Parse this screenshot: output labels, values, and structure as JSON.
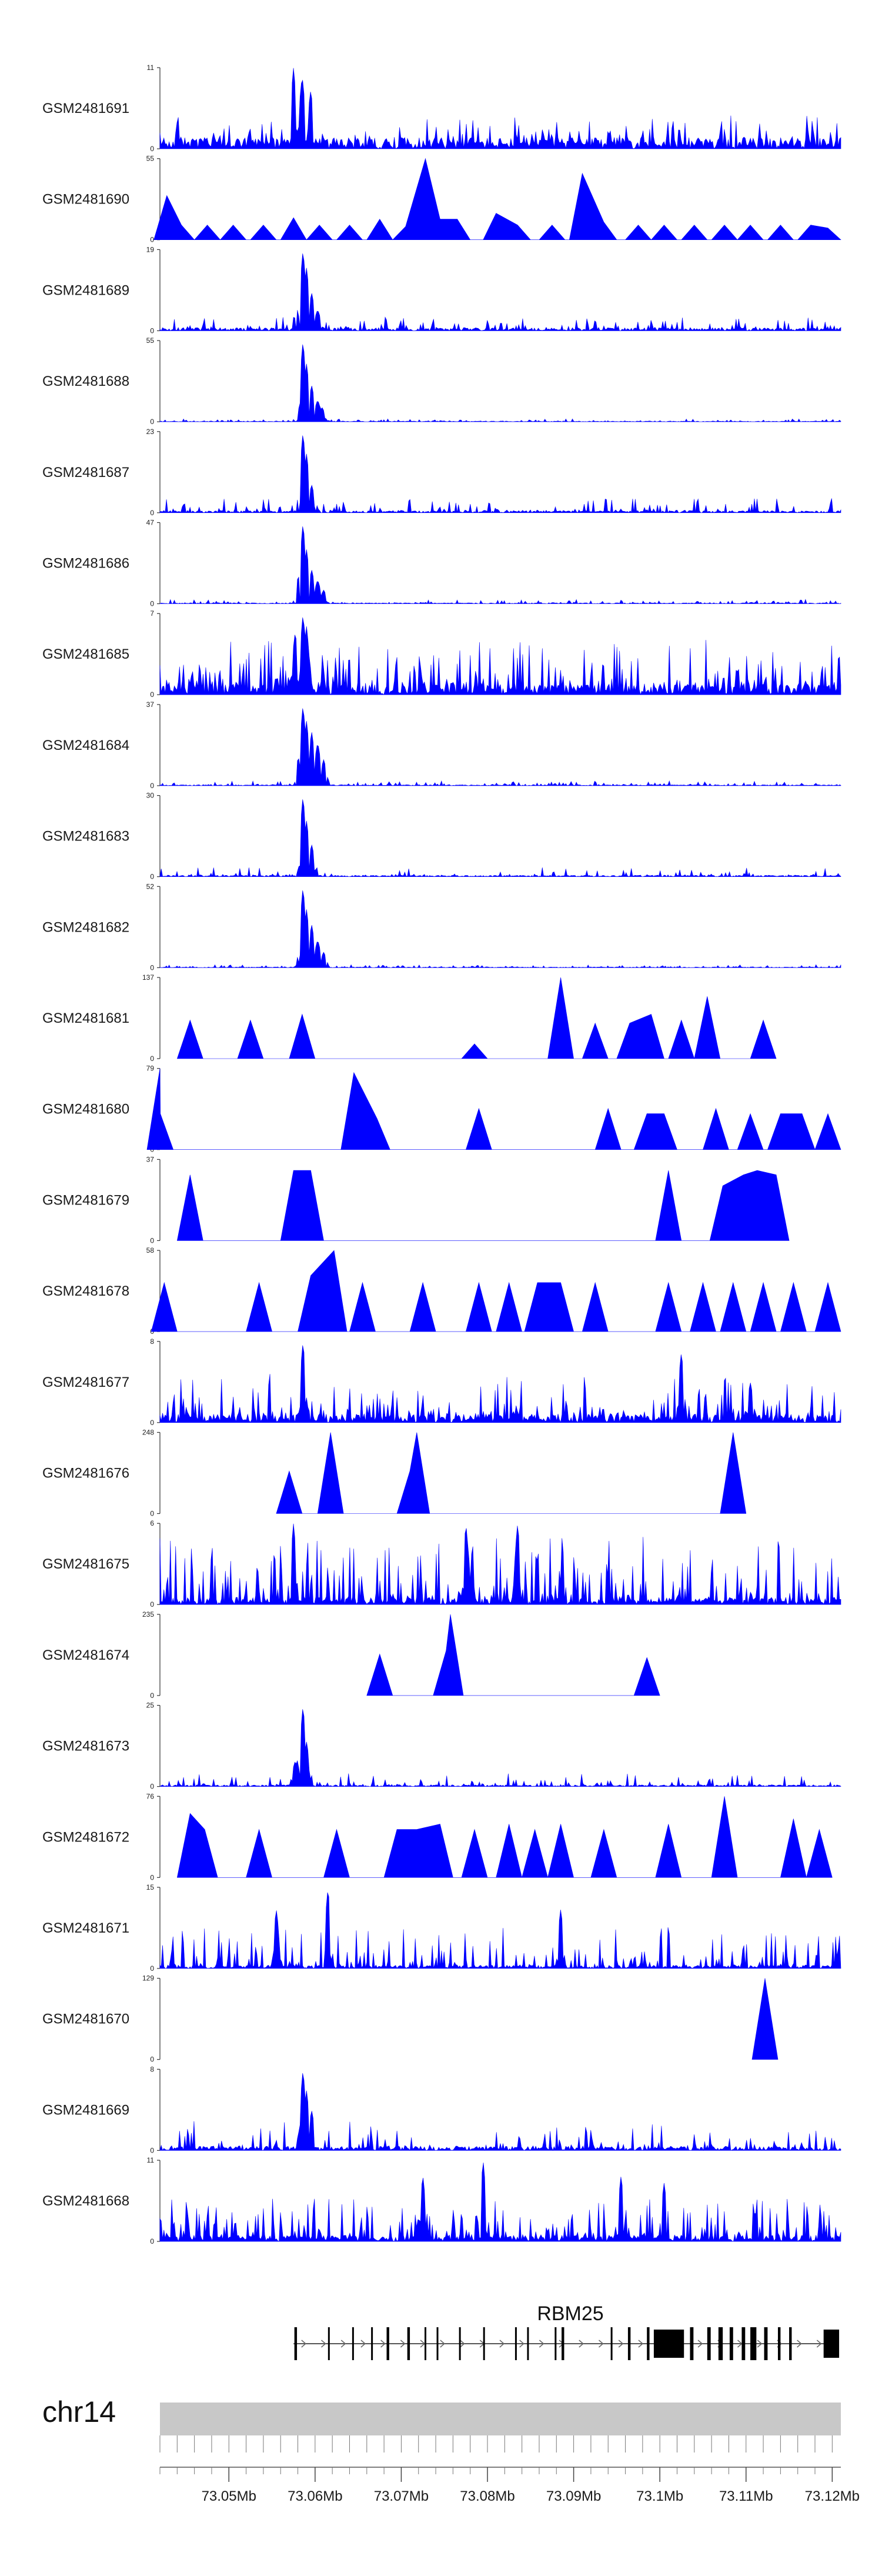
{
  "chart_data": {
    "type": "area",
    "title": "",
    "chromosome": "chr14",
    "gene": "RBM25",
    "x_unit": "Mb",
    "xlim": [
      73.042,
      73.121
    ],
    "x_ticks": [
      73.05,
      73.06,
      73.07,
      73.08,
      73.09,
      73.1,
      73.11,
      73.12
    ],
    "x_tick_labels": [
      "73.05Mb",
      "73.06Mb",
      "73.07Mb",
      "73.08Mb",
      "73.09Mb",
      "73.1Mb",
      "73.11Mb",
      "73.12Mb"
    ],
    "colors": {
      "signal": "#0000ff",
      "gene": "#000000",
      "ideogram": "#c8c8c8"
    },
    "series": [
      {
        "name": "GSM2481691",
        "ymax": 11,
        "ymax_label": "11",
        "ymin_label": "0",
        "style": "dense",
        "baseline": 1.5,
        "noise": 3.0,
        "sparse": 0.82,
        "spikes": [
          [
            73.0575,
            11.0
          ],
          [
            73.0585,
            10.0
          ],
          [
            73.0595,
            8.0
          ]
        ]
      },
      {
        "name": "GSM2481690",
        "ymax": 55,
        "ymax_label": "55",
        "ymin_label": "0",
        "style": "peaks",
        "peaks": [
          [
            73.0428,
            30
          ],
          [
            73.0445,
            10
          ],
          [
            73.0475,
            10
          ],
          [
            73.0505,
            10
          ],
          [
            73.054,
            10
          ],
          [
            73.0575,
            15
          ],
          [
            73.0605,
            10
          ],
          [
            73.064,
            10
          ],
          [
            73.0675,
            14
          ],
          [
            73.0705,
            9
          ],
          [
            73.0728,
            55
          ],
          [
            73.0745,
            14
          ],
          [
            73.0765,
            14
          ],
          [
            73.081,
            18
          ],
          [
            73.0835,
            10
          ],
          [
            73.0875,
            10
          ],
          [
            73.091,
            45
          ],
          [
            73.0935,
            12
          ],
          [
            73.0975,
            10
          ],
          [
            73.1005,
            10
          ],
          [
            73.104,
            10
          ],
          [
            73.1075,
            10
          ],
          [
            73.1105,
            10
          ],
          [
            73.114,
            10
          ],
          [
            73.1175,
            10
          ],
          [
            73.1195,
            8
          ]
        ]
      },
      {
        "name": "GSM2481689",
        "ymax": 19,
        "ymax_label": "19",
        "ymin_label": "0",
        "style": "dense",
        "baseline": 0.7,
        "noise": 2.5,
        "sparse": 0.8,
        "spikes": [
          [
            73.0586,
            19.0
          ],
          [
            73.059,
            15.0
          ],
          [
            73.0596,
            9.0
          ],
          [
            73.0603,
            5.0
          ]
        ]
      },
      {
        "name": "GSM2481688",
        "ymax": 55,
        "ymax_label": "55",
        "ymin_label": "0",
        "style": "dense",
        "baseline": 0.4,
        "noise": 1.5,
        "sparse": 0.75,
        "spikes": [
          [
            73.0586,
            55.0
          ],
          [
            73.059,
            40.0
          ],
          [
            73.0596,
            25.0
          ],
          [
            73.0603,
            15.0
          ],
          [
            73.0608,
            10.0
          ]
        ]
      },
      {
        "name": "GSM2481687",
        "ymax": 23,
        "ymax_label": "23",
        "ymin_label": "0",
        "style": "dense",
        "baseline": 0.6,
        "noise": 3.5,
        "sparse": 0.8,
        "spikes": [
          [
            73.0586,
            23.0
          ],
          [
            73.059,
            17.0
          ],
          [
            73.0596,
            8.0
          ]
        ]
      },
      {
        "name": "GSM2481686",
        "ymax": 47,
        "ymax_label": "47",
        "ymin_label": "0",
        "style": "dense",
        "baseline": 0.5,
        "noise": 2.0,
        "sparse": 0.75,
        "spikes": [
          [
            73.0586,
            47.0
          ],
          [
            73.059,
            32.0
          ],
          [
            73.0596,
            20.0
          ],
          [
            73.0603,
            14.0
          ],
          [
            73.061,
            8.0
          ]
        ]
      },
      {
        "name": "GSM2481685",
        "ymax": 7,
        "ymax_label": "7",
        "ymin_label": "0",
        "style": "dense",
        "baseline": 0.8,
        "noise": 4.0,
        "sparse": 0.55,
        "spikes": [
          [
            73.0586,
            7.0
          ],
          [
            73.059,
            6.0
          ],
          [
            73.0577,
            5.5
          ]
        ]
      },
      {
        "name": "GSM2481684",
        "ymax": 37,
        "ymax_label": "37",
        "ymin_label": "0",
        "style": "dense",
        "baseline": 0.4,
        "noise": 1.8,
        "sparse": 0.75,
        "spikes": [
          [
            73.0586,
            37.0
          ],
          [
            73.059,
            30.0
          ],
          [
            73.0596,
            25.0
          ],
          [
            73.0603,
            20.0
          ],
          [
            73.061,
            12.0
          ]
        ]
      },
      {
        "name": "GSM2481683",
        "ymax": 30,
        "ymax_label": "30",
        "ymin_label": "0",
        "style": "dense",
        "baseline": 0.5,
        "noise": 3.0,
        "sparse": 0.8,
        "spikes": [
          [
            73.0586,
            30.0
          ],
          [
            73.059,
            21.0
          ],
          [
            73.0596,
            12.0
          ]
        ]
      },
      {
        "name": "GSM2481682",
        "ymax": 52,
        "ymax_label": "52",
        "ymin_label": "0",
        "style": "dense",
        "baseline": 0.4,
        "noise": 1.5,
        "sparse": 0.75,
        "spikes": [
          [
            73.0586,
            52.0
          ],
          [
            73.059,
            38.0
          ],
          [
            73.0596,
            28.0
          ],
          [
            73.0603,
            18.0
          ],
          [
            73.061,
            10.0
          ]
        ]
      },
      {
        "name": "GSM2481681",
        "ymax": 137,
        "ymax_label": "137",
        "ymin_label": "0",
        "style": "peaks",
        "peaks": [
          [
            73.0455,
            65
          ],
          [
            73.0525,
            65
          ],
          [
            73.0585,
            75
          ],
          [
            73.0785,
            25
          ],
          [
            73.0885,
            137
          ],
          [
            73.0925,
            60
          ],
          [
            73.0965,
            60
          ],
          [
            73.099,
            75
          ],
          [
            73.1025,
            65
          ],
          [
            73.1055,
            105
          ],
          [
            73.112,
            65
          ]
        ]
      },
      {
        "name": "GSM2481680",
        "ymax": 79,
        "ymax_label": "79",
        "ymin_label": "0",
        "style": "peaks",
        "peaks": [
          [
            73.042,
            79
          ],
          [
            73.04205,
            35
          ],
          [
            73.0645,
            75
          ],
          [
            73.0672,
            30
          ],
          [
            73.079,
            40
          ],
          [
            73.094,
            40
          ],
          [
            73.0985,
            35
          ],
          [
            73.1005,
            35
          ],
          [
            73.1065,
            40
          ],
          [
            73.1105,
            35
          ],
          [
            73.114,
            35
          ],
          [
            73.1165,
            35
          ],
          [
            73.1195,
            35
          ]
        ]
      },
      {
        "name": "GSM2481679",
        "ymax": 37,
        "ymax_label": "37",
        "ymin_label": "0",
        "style": "peaks",
        "peaks": [
          [
            73.0455,
            30
          ],
          [
            73.0575,
            32
          ],
          [
            73.0595,
            32
          ],
          [
            73.101,
            32
          ],
          [
            73.1073,
            25
          ],
          [
            73.1097,
            30
          ],
          [
            73.1113,
            32
          ],
          [
            73.1135,
            30
          ]
        ]
      },
      {
        "name": "GSM2481678",
        "ymax": 58,
        "ymax_label": "58",
        "ymin_label": "0",
        "style": "peaks",
        "peaks": [
          [
            73.0425,
            35
          ],
          [
            73.0535,
            35
          ],
          [
            73.0595,
            40
          ],
          [
            73.0622,
            58
          ],
          [
            73.0655,
            35
          ],
          [
            73.0725,
            35
          ],
          [
            73.079,
            35
          ],
          [
            73.0825,
            35
          ],
          [
            73.0858,
            35
          ],
          [
            73.0885,
            35
          ],
          [
            73.0925,
            35
          ],
          [
            73.101,
            35
          ],
          [
            73.105,
            35
          ],
          [
            73.1085,
            35
          ],
          [
            73.112,
            35
          ],
          [
            73.1155,
            35
          ],
          [
            73.1195,
            35
          ]
        ]
      },
      {
        "name": "GSM2481677",
        "ymax": 8,
        "ymax_label": "8",
        "ymin_label": "0",
        "style": "dense",
        "baseline": 0.8,
        "noise": 4.0,
        "sparse": 0.7,
        "spikes": [
          [
            73.0586,
            8.0
          ],
          [
            73.1025,
            7.0
          ],
          [
            73.1105,
            4.0
          ]
        ]
      },
      {
        "name": "GSM2481676",
        "ymax": 248,
        "ymax_label": "248",
        "ymin_label": "0",
        "style": "peaks",
        "peaks": [
          [
            73.057,
            130
          ],
          [
            73.0618,
            248
          ],
          [
            73.071,
            130
          ],
          [
            73.0718,
            248
          ],
          [
            73.1085,
            248
          ]
        ]
      },
      {
        "name": "GSM2481675",
        "ymax": 6,
        "ymax_label": "6",
        "ymin_label": "0",
        "style": "dense",
        "baseline": 0.5,
        "noise": 4.5,
        "sparse": 0.6,
        "spikes": [
          [
            73.0575,
            6.0
          ],
          [
            73.0775,
            6.0
          ],
          [
            73.0835,
            6.0
          ]
        ]
      },
      {
        "name": "GSM2481674",
        "ymax": 235,
        "ymax_label": "235",
        "ymin_label": "0",
        "style": "peaks",
        "peaks": [
          [
            73.0675,
            120
          ],
          [
            73.0752,
            130
          ],
          [
            73.0757,
            235
          ],
          [
            73.0985,
            110
          ]
        ]
      },
      {
        "name": "GSM2481673",
        "ymax": 25,
        "ymax_label": "25",
        "ymin_label": "0",
        "style": "dense",
        "baseline": 0.5,
        "noise": 3.5,
        "sparse": 0.8,
        "spikes": [
          [
            73.0586,
            25.0
          ],
          [
            73.059,
            14.0
          ],
          [
            73.0577,
            8.0
          ]
        ]
      },
      {
        "name": "GSM2481672",
        "ymax": 76,
        "ymax_label": "76",
        "ymin_label": "0",
        "style": "peaks",
        "peaks": [
          [
            73.0455,
            60
          ],
          [
            73.0472,
            45
          ],
          [
            73.0535,
            45
          ],
          [
            73.0625,
            45
          ],
          [
            73.0695,
            45
          ],
          [
            73.0718,
            45
          ],
          [
            73.0745,
            50
          ],
          [
            73.0785,
            45
          ],
          [
            73.0825,
            50
          ],
          [
            73.0855,
            45
          ],
          [
            73.0885,
            50
          ],
          [
            73.0935,
            45
          ],
          [
            73.101,
            50
          ],
          [
            73.1075,
            76
          ],
          [
            73.1155,
            55
          ],
          [
            73.1185,
            45
          ]
        ]
      },
      {
        "name": "GSM2481671",
        "ymax": 15,
        "ymax_label": "15",
        "ymin_label": "0",
        "style": "dense",
        "baseline": 0.6,
        "noise": 7.0,
        "sparse": 0.7,
        "spikes": [
          [
            73.0615,
            15.0
          ],
          [
            73.0555,
            11.0
          ],
          [
            73.0885,
            11.0
          ]
        ]
      },
      {
        "name": "GSM2481670",
        "ymax": 129,
        "ymax_label": "129",
        "ymin_label": "0",
        "style": "peaks",
        "peaks": [
          [
            73.1122,
            129
          ]
        ]
      },
      {
        "name": "GSM2481669",
        "ymax": 8,
        "ymax_label": "8",
        "ymin_label": "0",
        "style": "dense",
        "baseline": 0.4,
        "noise": 2.5,
        "sparse": 0.8,
        "spikes": [
          [
            73.0586,
            8.0
          ],
          [
            73.059,
            6.0
          ],
          [
            73.0596,
            4.0
          ]
        ]
      },
      {
        "name": "GSM2481668",
        "ymax": 11,
        "ymax_label": "11",
        "ymin_label": "0",
        "style": "dense",
        "baseline": 0.8,
        "noise": 5.0,
        "sparse": 0.6,
        "spikes": [
          [
            73.0795,
            11.0
          ],
          [
            73.0725,
            9.0
          ],
          [
            73.0955,
            9.0
          ],
          [
            73.1005,
            8.0
          ]
        ]
      }
    ]
  }
}
